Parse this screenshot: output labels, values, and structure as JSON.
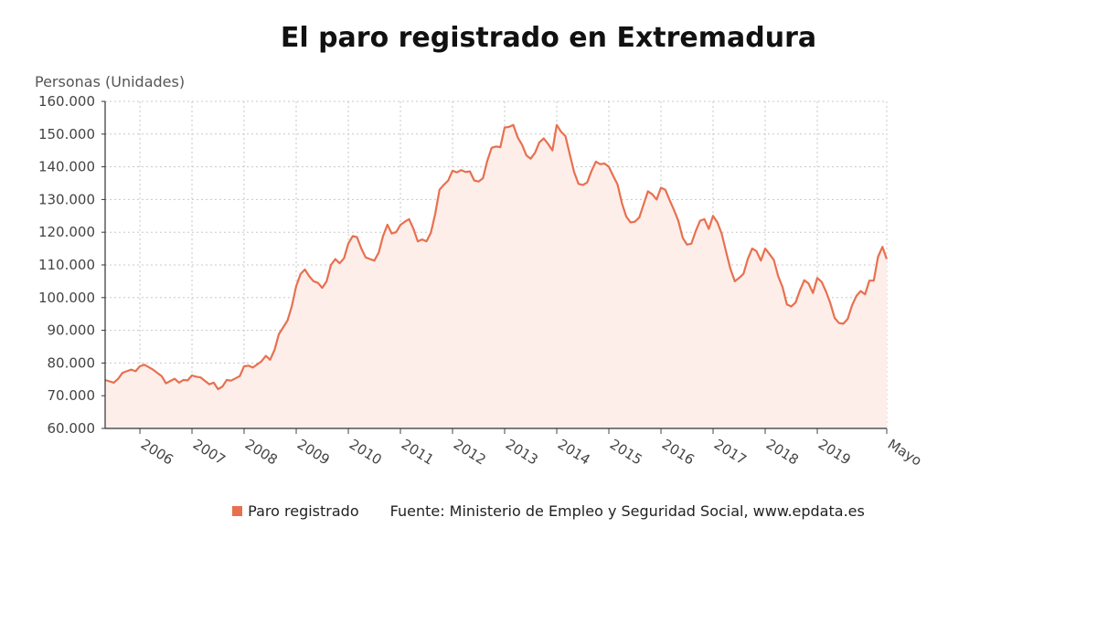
{
  "page": {
    "title": "El paro registrado en Extremadura"
  },
  "chart_data": {
    "type": "area",
    "title": "El paro registrado en Extremadura",
    "ylabel": "Personas (Unidades)",
    "xlabel": "",
    "ylim": [
      60000,
      160000
    ],
    "y_ticks": [
      60000,
      70000,
      80000,
      90000,
      100000,
      110000,
      120000,
      130000,
      140000,
      150000,
      160000
    ],
    "y_tick_labels": [
      "60.000",
      "70.000",
      "80.000",
      "90.000",
      "100.000",
      "110.000",
      "120.000",
      "130.000",
      "140.000",
      "150.000",
      "160.000"
    ],
    "x_tick_labels": [
      {
        "label": "2006",
        "month": 2006.0
      },
      {
        "label": "2007",
        "month": 2007.0
      },
      {
        "label": "2008",
        "month": 2008.0
      },
      {
        "label": "2009",
        "month": 2009.0
      },
      {
        "label": "2010",
        "month": 2010.0
      },
      {
        "label": "2011",
        "month": 2011.0
      },
      {
        "label": "2012",
        "month": 2012.0
      },
      {
        "label": "2013",
        "month": 2013.0
      },
      {
        "label": "2014",
        "month": 2014.0
      },
      {
        "label": "2015",
        "month": 2015.0
      },
      {
        "label": "2016",
        "month": 2016.0
      },
      {
        "label": "2017",
        "month": 2017.0
      },
      {
        "label": "2018",
        "month": 2018.0
      },
      {
        "label": "2019",
        "month": 2019.0
      },
      {
        "label": "Mayo",
        "month": 2020.333
      }
    ],
    "xlim": [
      2005.333,
      2020.333
    ],
    "grid": true,
    "legend_position": "bottom-center",
    "series": [
      {
        "name": "Paro registrado",
        "color": "#e8704f",
        "fill": "#fdeeea",
        "points": [
          [
            2005.333,
            74800
          ],
          [
            2005.5,
            74000
          ],
          [
            2005.583,
            75200
          ],
          [
            2005.667,
            77000
          ],
          [
            2005.833,
            78000
          ],
          [
            2005.917,
            77500
          ],
          [
            2006.0,
            79000
          ],
          [
            2006.083,
            79500
          ],
          [
            2006.25,
            78000
          ],
          [
            2006.417,
            76000
          ],
          [
            2006.5,
            73800
          ],
          [
            2006.667,
            75200
          ],
          [
            2006.75,
            74000
          ],
          [
            2006.833,
            74800
          ],
          [
            2006.917,
            74700
          ],
          [
            2007.0,
            76200
          ],
          [
            2007.083,
            75800
          ],
          [
            2007.167,
            75600
          ],
          [
            2007.333,
            73500
          ],
          [
            2007.417,
            74000
          ],
          [
            2007.5,
            72000
          ],
          [
            2007.583,
            72800
          ],
          [
            2007.667,
            74800
          ],
          [
            2007.75,
            74600
          ],
          [
            2007.917,
            76000
          ],
          [
            2008.0,
            79000
          ],
          [
            2008.083,
            79200
          ],
          [
            2008.167,
            78600
          ],
          [
            2008.333,
            80500
          ],
          [
            2008.417,
            82200
          ],
          [
            2008.5,
            81000
          ],
          [
            2008.583,
            84000
          ],
          [
            2008.667,
            88800
          ],
          [
            2008.833,
            93000
          ],
          [
            2008.917,
            97500
          ],
          [
            2009.0,
            103500
          ],
          [
            2009.083,
            107200
          ],
          [
            2009.167,
            108600
          ],
          [
            2009.25,
            106500
          ],
          [
            2009.333,
            105000
          ],
          [
            2009.417,
            104500
          ],
          [
            2009.5,
            103000
          ],
          [
            2009.583,
            105000
          ],
          [
            2009.667,
            110000
          ],
          [
            2009.75,
            111800
          ],
          [
            2009.833,
            110500
          ],
          [
            2009.917,
            112000
          ],
          [
            2010.0,
            116500
          ],
          [
            2010.083,
            118800
          ],
          [
            2010.167,
            118500
          ],
          [
            2010.25,
            115000
          ],
          [
            2010.333,
            112300
          ],
          [
            2010.417,
            111800
          ],
          [
            2010.5,
            111300
          ],
          [
            2010.583,
            113800
          ],
          [
            2010.667,
            118800
          ],
          [
            2010.75,
            122300
          ],
          [
            2010.833,
            119600
          ],
          [
            2010.917,
            120000
          ],
          [
            2011.0,
            122200
          ],
          [
            2011.083,
            123200
          ],
          [
            2011.167,
            124000
          ],
          [
            2011.25,
            121000
          ],
          [
            2011.333,
            117200
          ],
          [
            2011.417,
            117800
          ],
          [
            2011.5,
            117200
          ],
          [
            2011.583,
            119800
          ],
          [
            2011.667,
            125500
          ],
          [
            2011.75,
            133000
          ],
          [
            2011.833,
            134500
          ],
          [
            2011.917,
            135800
          ],
          [
            2012.0,
            138800
          ],
          [
            2012.083,
            138300
          ],
          [
            2012.167,
            139000
          ],
          [
            2012.25,
            138400
          ],
          [
            2012.333,
            138600
          ],
          [
            2012.417,
            135800
          ],
          [
            2012.5,
            135500
          ],
          [
            2012.583,
            136500
          ],
          [
            2012.667,
            141800
          ],
          [
            2012.75,
            145800
          ],
          [
            2012.833,
            146200
          ],
          [
            2012.917,
            146000
          ],
          [
            2013.0,
            152000
          ],
          [
            2013.083,
            152200
          ],
          [
            2013.167,
            152800
          ],
          [
            2013.25,
            149000
          ],
          [
            2013.333,
            146800
          ],
          [
            2013.417,
            143500
          ],
          [
            2013.5,
            142500
          ],
          [
            2013.583,
            144300
          ],
          [
            2013.667,
            147500
          ],
          [
            2013.75,
            148700
          ],
          [
            2013.833,
            147000
          ],
          [
            2013.917,
            145000
          ],
          [
            2014.0,
            152800
          ],
          [
            2014.083,
            150700
          ],
          [
            2014.167,
            149400
          ],
          [
            2014.25,
            143800
          ],
          [
            2014.333,
            138400
          ],
          [
            2014.417,
            134800
          ],
          [
            2014.5,
            134400
          ],
          [
            2014.583,
            135200
          ],
          [
            2014.667,
            138700
          ],
          [
            2014.75,
            141600
          ],
          [
            2014.833,
            140800
          ],
          [
            2014.917,
            141000
          ],
          [
            2015.0,
            140000
          ],
          [
            2015.083,
            137200
          ],
          [
            2015.167,
            134600
          ],
          [
            2015.25,
            128900
          ],
          [
            2015.333,
            124800
          ],
          [
            2015.417,
            123000
          ],
          [
            2015.5,
            123200
          ],
          [
            2015.583,
            124500
          ],
          [
            2015.667,
            128500
          ],
          [
            2015.75,
            132500
          ],
          [
            2015.833,
            131600
          ],
          [
            2015.917,
            130000
          ],
          [
            2016.0,
            133600
          ],
          [
            2016.083,
            133000
          ],
          [
            2016.167,
            129800
          ],
          [
            2016.25,
            126800
          ],
          [
            2016.333,
            123500
          ],
          [
            2016.417,
            118300
          ],
          [
            2016.5,
            116200
          ],
          [
            2016.583,
            116500
          ],
          [
            2016.667,
            120300
          ],
          [
            2016.75,
            123500
          ],
          [
            2016.833,
            124000
          ],
          [
            2016.917,
            121000
          ],
          [
            2017.0,
            125000
          ],
          [
            2017.083,
            123000
          ],
          [
            2017.167,
            119500
          ],
          [
            2017.25,
            114000
          ],
          [
            2017.333,
            108800
          ],
          [
            2017.417,
            105000
          ],
          [
            2017.5,
            106000
          ],
          [
            2017.583,
            107300
          ],
          [
            2017.667,
            111800
          ],
          [
            2017.75,
            115000
          ],
          [
            2017.833,
            114200
          ],
          [
            2017.917,
            111300
          ],
          [
            2018.0,
            115000
          ],
          [
            2018.083,
            113300
          ],
          [
            2018.167,
            111500
          ],
          [
            2018.25,
            106500
          ],
          [
            2018.333,
            103200
          ],
          [
            2018.417,
            97900
          ],
          [
            2018.5,
            97300
          ],
          [
            2018.583,
            98500
          ],
          [
            2018.667,
            102200
          ],
          [
            2018.75,
            105300
          ],
          [
            2018.833,
            104300
          ],
          [
            2018.917,
            101400
          ],
          [
            2019.0,
            106000
          ],
          [
            2019.083,
            104800
          ],
          [
            2019.167,
            101900
          ],
          [
            2019.25,
            98300
          ],
          [
            2019.333,
            93800
          ],
          [
            2019.417,
            92200
          ],
          [
            2019.5,
            92000
          ],
          [
            2019.583,
            93500
          ],
          [
            2019.667,
            97600
          ],
          [
            2019.75,
            100500
          ],
          [
            2019.833,
            102000
          ],
          [
            2019.917,
            101000
          ],
          [
            2020.0,
            105200
          ],
          [
            2020.083,
            105200
          ],
          [
            2020.167,
            112500
          ],
          [
            2020.25,
            115500
          ],
          [
            2020.333,
            111800
          ]
        ]
      }
    ]
  },
  "legend": {
    "series_label": "Paro registrado",
    "swatch_color": "#e8704f",
    "source": "Fuente: Ministerio de Empleo y Seguridad Social, www.epdata.es"
  }
}
